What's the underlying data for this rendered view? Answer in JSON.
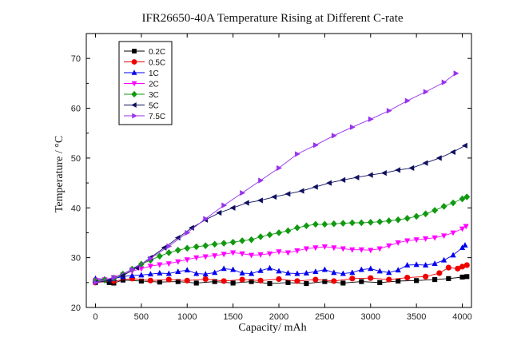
{
  "chart_data": {
    "type": "line",
    "title": "IFR26650-40A Temperature Rising at Different C-rate",
    "xlabel": "Capacity/ mAh",
    "ylabel": "Temperature / °C",
    "xlim": [
      -100,
      4100
    ],
    "ylim": [
      20,
      75
    ],
    "xticks": [
      0,
      500,
      1000,
      1500,
      2000,
      2500,
      3000,
      3500,
      4000
    ],
    "yticks": [
      20,
      30,
      40,
      50,
      60,
      70
    ],
    "legend_position": "top-left",
    "grid": false,
    "series": [
      {
        "name": "0.2C",
        "color": "#000000",
        "marker": "square",
        "points": [
          [
            0,
            25.3
          ],
          [
            150,
            25.0
          ],
          [
            200,
            24.9
          ],
          [
            300,
            25.5
          ],
          [
            500,
            25.3
          ],
          [
            700,
            25.1
          ],
          [
            900,
            25.2
          ],
          [
            1100,
            24.9
          ],
          [
            1300,
            25.2
          ],
          [
            1500,
            24.9
          ],
          [
            1700,
            25.2
          ],
          [
            1900,
            24.8
          ],
          [
            2100,
            25.0
          ],
          [
            2300,
            24.8
          ],
          [
            2500,
            25.2
          ],
          [
            2700,
            24.9
          ],
          [
            2900,
            25.2
          ],
          [
            3100,
            25.0
          ],
          [
            3300,
            25.3
          ],
          [
            3500,
            25.4
          ],
          [
            3700,
            25.6
          ],
          [
            3850,
            25.8
          ],
          [
            4000,
            26.1
          ],
          [
            4050,
            26.2
          ]
        ]
      },
      {
        "name": "0.5C",
        "color": "#ee0000",
        "marker": "circle",
        "points": [
          [
            0,
            25.0
          ],
          [
            200,
            25.3
          ],
          [
            400,
            25.8
          ],
          [
            600,
            25.4
          ],
          [
            800,
            25.6
          ],
          [
            1000,
            25.4
          ],
          [
            1200,
            25.7
          ],
          [
            1400,
            25.3
          ],
          [
            1600,
            25.6
          ],
          [
            1800,
            25.4
          ],
          [
            2000,
            25.7
          ],
          [
            2200,
            25.3
          ],
          [
            2400,
            25.6
          ],
          [
            2600,
            25.3
          ],
          [
            2800,
            25.8
          ],
          [
            3000,
            25.9
          ],
          [
            3200,
            25.6
          ],
          [
            3400,
            26.0
          ],
          [
            3600,
            26.2
          ],
          [
            3750,
            26.9
          ],
          [
            3850,
            28.0
          ],
          [
            3950,
            27.8
          ],
          [
            4000,
            28.2
          ],
          [
            4050,
            28.5
          ]
        ]
      },
      {
        "name": "1C",
        "color": "#0000ee",
        "marker": "triangle-up",
        "points": [
          [
            0,
            25.8
          ],
          [
            100,
            25.7
          ],
          [
            200,
            25.8
          ],
          [
            300,
            26.2
          ],
          [
            400,
            26.4
          ],
          [
            500,
            26.5
          ],
          [
            600,
            26.7
          ],
          [
            700,
            26.9
          ],
          [
            800,
            26.8
          ],
          [
            900,
            27.2
          ],
          [
            1000,
            27.5
          ],
          [
            1100,
            26.8
          ],
          [
            1200,
            26.7
          ],
          [
            1300,
            27.0
          ],
          [
            1400,
            27.8
          ],
          [
            1500,
            27.6
          ],
          [
            1600,
            26.9
          ],
          [
            1700,
            26.8
          ],
          [
            1800,
            27.4
          ],
          [
            1900,
            27.9
          ],
          [
            2000,
            27.3
          ],
          [
            2100,
            26.9
          ],
          [
            2200,
            26.8
          ],
          [
            2300,
            26.9
          ],
          [
            2400,
            27.2
          ],
          [
            2500,
            27.6
          ],
          [
            2600,
            27.0
          ],
          [
            2700,
            26.8
          ],
          [
            2800,
            27.0
          ],
          [
            2900,
            27.6
          ],
          [
            3000,
            27.8
          ],
          [
            3100,
            27.3
          ],
          [
            3200,
            27.0
          ],
          [
            3300,
            27.5
          ],
          [
            3400,
            28.5
          ],
          [
            3500,
            28.6
          ],
          [
            3600,
            28.5
          ],
          [
            3700,
            28.8
          ],
          [
            3800,
            29.5
          ],
          [
            3900,
            30.5
          ],
          [
            4000,
            32.0
          ],
          [
            4030,
            32.5
          ]
        ]
      },
      {
        "name": "2C",
        "color": "#ff00ff",
        "marker": "triangle-down",
        "points": [
          [
            0,
            25.5
          ],
          [
            100,
            25.6
          ],
          [
            200,
            26.0
          ],
          [
            300,
            26.6
          ],
          [
            400,
            27.3
          ],
          [
            500,
            27.8
          ],
          [
            600,
            28.3
          ],
          [
            700,
            28.6
          ],
          [
            800,
            28.8
          ],
          [
            900,
            29.2
          ],
          [
            1000,
            29.6
          ],
          [
            1100,
            30.0
          ],
          [
            1200,
            30.2
          ],
          [
            1300,
            30.4
          ],
          [
            1400,
            30.7
          ],
          [
            1500,
            31.0
          ],
          [
            1600,
            30.8
          ],
          [
            1700,
            30.5
          ],
          [
            1800,
            30.6
          ],
          [
            1900,
            30.8
          ],
          [
            2000,
            31.2
          ],
          [
            2100,
            31.0
          ],
          [
            2200,
            31.4
          ],
          [
            2300,
            31.8
          ],
          [
            2400,
            32.0
          ],
          [
            2500,
            32.2
          ],
          [
            2600,
            32.0
          ],
          [
            2700,
            31.8
          ],
          [
            2800,
            31.6
          ],
          [
            2900,
            31.6
          ],
          [
            3000,
            31.5
          ],
          [
            3100,
            31.8
          ],
          [
            3200,
            32.4
          ],
          [
            3300,
            33.0
          ],
          [
            3400,
            33.4
          ],
          [
            3500,
            33.6
          ],
          [
            3600,
            33.8
          ],
          [
            3700,
            34.0
          ],
          [
            3800,
            34.4
          ],
          [
            3900,
            35.0
          ],
          [
            4000,
            35.8
          ],
          [
            4040,
            36.3
          ]
        ]
      },
      {
        "name": "3C",
        "color": "#119911",
        "marker": "diamond",
        "points": [
          [
            0,
            25.3
          ],
          [
            100,
            25.5
          ],
          [
            200,
            25.9
          ],
          [
            300,
            26.7
          ],
          [
            400,
            27.7
          ],
          [
            500,
            28.7
          ],
          [
            600,
            29.5
          ],
          [
            700,
            30.3
          ],
          [
            800,
            31.0
          ],
          [
            900,
            31.5
          ],
          [
            1000,
            31.9
          ],
          [
            1100,
            32.2
          ],
          [
            1200,
            32.4
          ],
          [
            1300,
            32.7
          ],
          [
            1400,
            32.9
          ],
          [
            1500,
            33.1
          ],
          [
            1600,
            33.4
          ],
          [
            1700,
            33.6
          ],
          [
            1800,
            34.2
          ],
          [
            1900,
            34.6
          ],
          [
            2000,
            35.0
          ],
          [
            2100,
            35.4
          ],
          [
            2200,
            36.0
          ],
          [
            2300,
            36.4
          ],
          [
            2400,
            36.7
          ],
          [
            2500,
            36.7
          ],
          [
            2600,
            36.8
          ],
          [
            2700,
            36.9
          ],
          [
            2800,
            37.0
          ],
          [
            2900,
            37.0
          ],
          [
            3000,
            37.1
          ],
          [
            3100,
            37.2
          ],
          [
            3200,
            37.4
          ],
          [
            3300,
            37.6
          ],
          [
            3400,
            37.9
          ],
          [
            3500,
            38.3
          ],
          [
            3600,
            38.8
          ],
          [
            3700,
            39.5
          ],
          [
            3800,
            40.3
          ],
          [
            3900,
            41.0
          ],
          [
            4000,
            41.8
          ],
          [
            4050,
            42.2
          ]
        ]
      },
      {
        "name": "5C",
        "color": "#101060",
        "marker": "triangle-left",
        "points": [
          [
            0,
            25.0
          ],
          [
            150,
            25.4
          ],
          [
            300,
            26.4
          ],
          [
            450,
            28.0
          ],
          [
            600,
            30.0
          ],
          [
            750,
            32.0
          ],
          [
            900,
            34.0
          ],
          [
            1050,
            36.0
          ],
          [
            1200,
            37.6
          ],
          [
            1350,
            39.0
          ],
          [
            1500,
            40.0
          ],
          [
            1650,
            41.0
          ],
          [
            1800,
            41.5
          ],
          [
            1950,
            42.2
          ],
          [
            2100,
            42.8
          ],
          [
            2250,
            43.4
          ],
          [
            2400,
            44.2
          ],
          [
            2550,
            45.0
          ],
          [
            2700,
            45.6
          ],
          [
            2850,
            46.1
          ],
          [
            3000,
            46.6
          ],
          [
            3150,
            47.0
          ],
          [
            3300,
            47.6
          ],
          [
            3450,
            48.0
          ],
          [
            3600,
            49.0
          ],
          [
            3750,
            50.0
          ],
          [
            3900,
            51.2
          ],
          [
            4030,
            52.5
          ]
        ]
      },
      {
        "name": "7.5C",
        "color": "#9933ee",
        "marker": "triangle-right",
        "points": [
          [
            0,
            25.0
          ],
          [
            200,
            26.0
          ],
          [
            400,
            27.6
          ],
          [
            600,
            29.8
          ],
          [
            800,
            32.3
          ],
          [
            1000,
            35.0
          ],
          [
            1200,
            37.8
          ],
          [
            1400,
            40.5
          ],
          [
            1600,
            43.0
          ],
          [
            1800,
            45.5
          ],
          [
            2000,
            48.0
          ],
          [
            2200,
            50.8
          ],
          [
            2400,
            52.6
          ],
          [
            2600,
            54.5
          ],
          [
            2800,
            56.2
          ],
          [
            3000,
            57.8
          ],
          [
            3200,
            59.5
          ],
          [
            3400,
            61.5
          ],
          [
            3600,
            63.3
          ],
          [
            3800,
            65.2
          ],
          [
            3930,
            67.0
          ]
        ]
      }
    ]
  }
}
